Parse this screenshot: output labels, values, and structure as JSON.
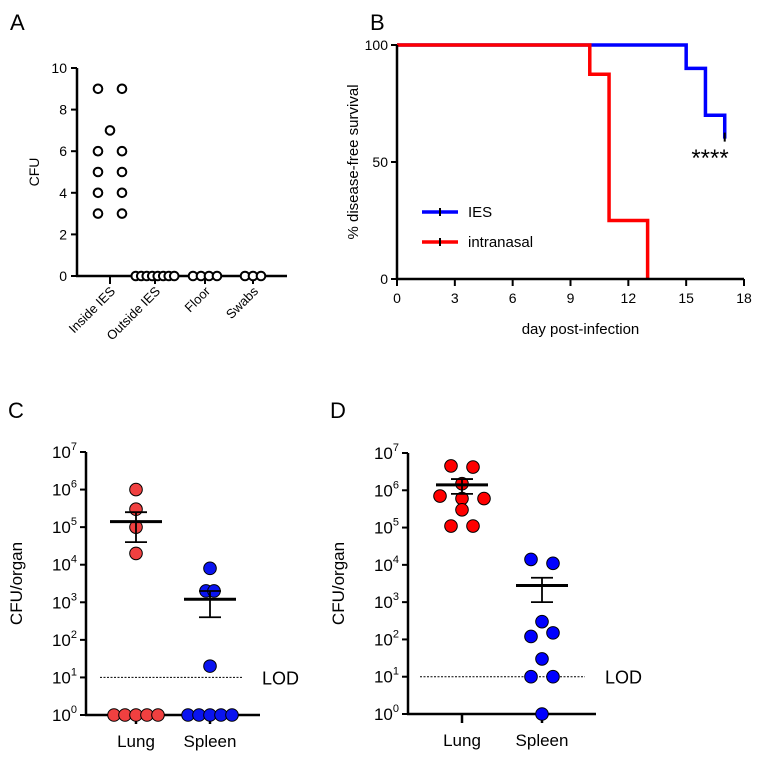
{
  "chart_data": [
    {
      "panel": "A",
      "type": "scatter",
      "ylabel": "CFU",
      "ylim": [
        0,
        10
      ],
      "yticks": [
        0,
        2,
        4,
        6,
        8,
        10
      ],
      "categories": [
        "Inside IES",
        "Outside IES",
        "Floor",
        "Swabs"
      ],
      "values": [
        [
          3,
          4,
          5,
          6,
          9,
          7,
          3,
          4,
          5,
          6,
          9
        ],
        [
          0,
          0,
          0,
          0,
          0,
          0,
          0,
          0
        ],
        [
          0,
          0,
          0,
          0
        ],
        [
          0,
          0,
          0
        ]
      ],
      "marker": "open-circle"
    },
    {
      "panel": "B",
      "type": "line",
      "xlabel": "day post-infection",
      "ylabel": "% disease-free survival",
      "xlim": [
        0,
        18
      ],
      "xticks": [
        0,
        3,
        6,
        9,
        12,
        15,
        18
      ],
      "ylim": [
        0,
        100
      ],
      "yticks": [
        0,
        50,
        100
      ],
      "series": [
        {
          "name": "IES",
          "color": "#0000ff",
          "x": [
            0,
            15,
            15,
            16,
            16,
            17,
            17
          ],
          "y": [
            100,
            100,
            90,
            90,
            70,
            70,
            60
          ]
        },
        {
          "name": "intranasal",
          "color": "#ff0000",
          "x": [
            0,
            10,
            10,
            11,
            11,
            13,
            13
          ],
          "y": [
            100,
            100,
            87.5,
            87.5,
            25,
            25,
            0
          ]
        }
      ],
      "annotation": "****",
      "legend": "bottom-left"
    },
    {
      "panel": "C",
      "type": "scatter",
      "ylabel": "CFU/organ",
      "yscale": "log",
      "ylim": [
        1,
        10000000
      ],
      "ytick_exponents": [
        "0",
        "1",
        "2",
        "3",
        "4",
        "5",
        "6",
        "7"
      ],
      "ytick_base": "10",
      "categories": [
        "Lung",
        "Spleen"
      ],
      "lod_label": "LOD",
      "lod": 10,
      "series": [
        {
          "name": "Lung",
          "color": "#f04040",
          "values": [
            1000000,
            300000,
            100000,
            20000,
            1,
            1,
            1,
            1,
            1
          ],
          "mean": 140000,
          "sem": [
            40000,
            250000
          ]
        },
        {
          "name": "Spleen",
          "color": "#0a14f0",
          "values": [
            8000,
            2000,
            2000,
            20,
            1,
            1,
            1,
            1,
            1
          ],
          "mean": 1200,
          "sem": [
            400,
            2000
          ]
        }
      ]
    },
    {
      "panel": "D",
      "type": "scatter",
      "ylabel": "CFU/organ",
      "yscale": "log",
      "ylim": [
        1,
        10000000
      ],
      "ytick_exponents": [
        "0",
        "1",
        "2",
        "3",
        "4",
        "5",
        "6",
        "7"
      ],
      "ytick_base": "10",
      "categories": [
        "Lung",
        "Spleen"
      ],
      "lod_label": "LOD",
      "lod": 10,
      "series": [
        {
          "name": "Lung",
          "color": "#ff0000",
          "values": [
            4500000,
            4200000,
            1500000,
            700000,
            600000,
            600000,
            300000,
            110000,
            110000
          ],
          "mean": 1400000,
          "sem": [
            800000,
            2000000
          ]
        },
        {
          "name": "Spleen",
          "color": "#0000ff",
          "values": [
            14000,
            11000,
            300,
            120,
            150,
            30,
            10,
            10,
            1
          ],
          "mean": 2800,
          "sem": [
            1000,
            4500
          ]
        }
      ]
    }
  ],
  "panel_labels": [
    "A",
    "B",
    "C",
    "D"
  ]
}
